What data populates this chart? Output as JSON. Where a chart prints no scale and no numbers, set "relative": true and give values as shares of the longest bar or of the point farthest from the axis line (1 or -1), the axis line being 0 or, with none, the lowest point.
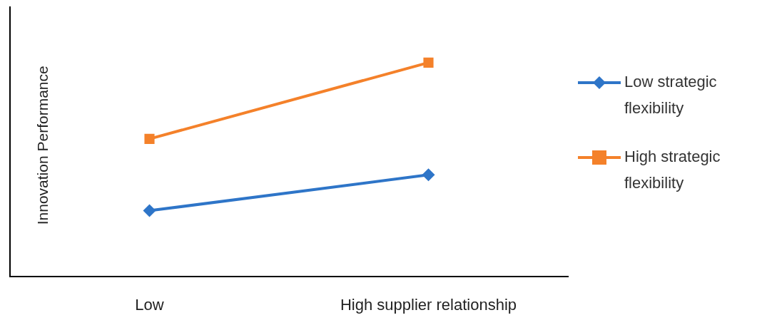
{
  "chart_data": {
    "type": "line",
    "relative": true,
    "ylabel": "Innovation Performance",
    "categories": [
      "Low",
      "High supplier relationship"
    ],
    "legend": "right",
    "grid": false,
    "series": [
      {
        "name": "Low strategic flexibility",
        "color": "#2e75c8",
        "values": [
          0.307,
          0.475
        ],
        "marker": "diamond"
      },
      {
        "name": "High strategic flexibility",
        "color": "#f4812a",
        "values": [
          0.643,
          1
        ],
        "marker": "square"
      }
    ]
  }
}
